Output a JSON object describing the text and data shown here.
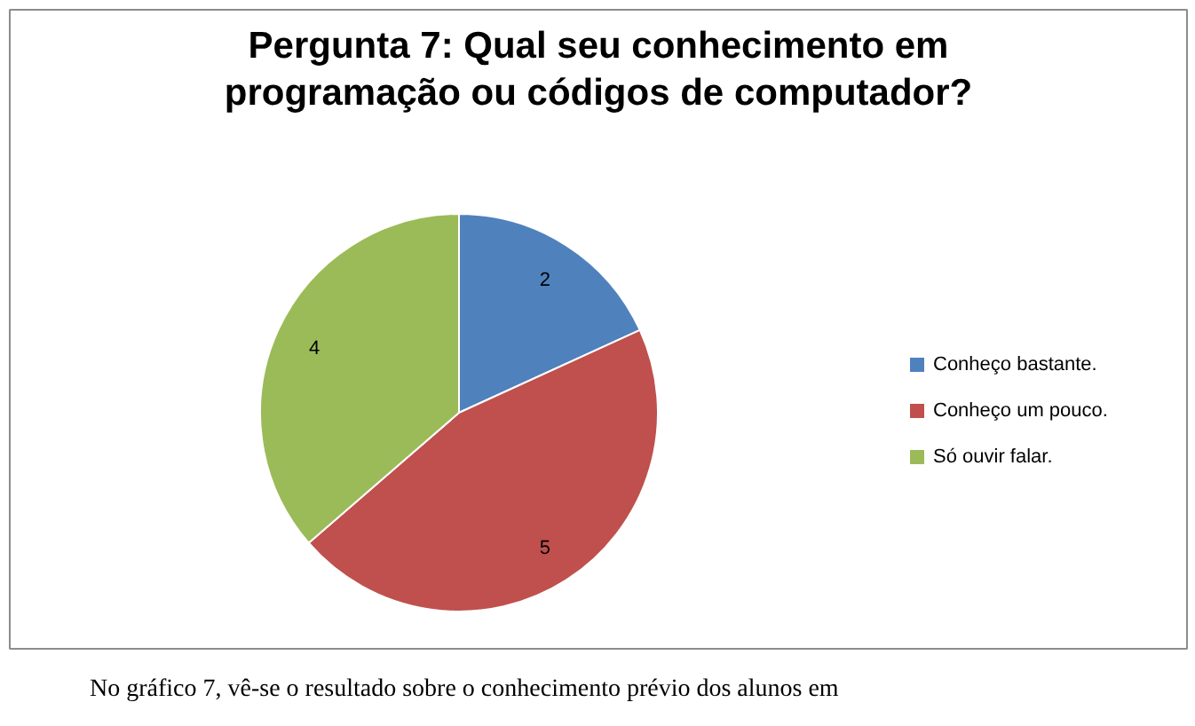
{
  "chart_data": {
    "type": "pie",
    "title": "Pergunta 7: Qual seu conhecimento em\nprogramação ou códigos de computador?",
    "categories": [
      "Conheço bastante.",
      "Conheço um pouco.",
      "Só ouvir falar."
    ],
    "values": [
      2,
      5,
      4
    ],
    "colors": [
      "#4f81bd",
      "#c0504d",
      "#9bbb59"
    ],
    "data_labels": true,
    "legend": "right",
    "annotations": [
      "No gráfico 7, vê-se o resultado sobre o conhecimento prévio dos alunos em"
    ]
  }
}
